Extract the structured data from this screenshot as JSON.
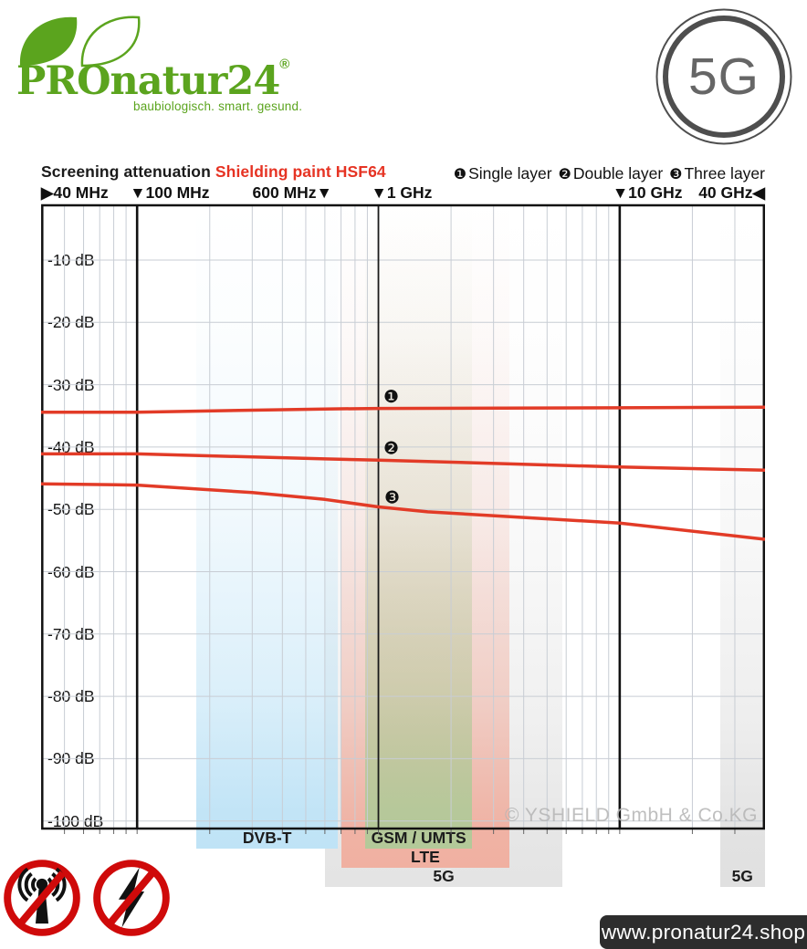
{
  "logo": {
    "name": "PROnatur24",
    "reg": "®",
    "tagline": "baubiologisch. smart. gesund.",
    "green": "#5ba41e"
  },
  "badge_5g": {
    "text": "5G"
  },
  "header": {
    "title_black": "Screening attenuation",
    "title_red": "Shielding paint HSF64"
  },
  "legend": {
    "items": [
      {
        "marker": "❶",
        "label": "Single layer"
      },
      {
        "marker": "❷",
        "label": "Double layer"
      },
      {
        "marker": "❸",
        "label": "Three layer"
      }
    ]
  },
  "watermark": "© YSHIELD GmbH & Co.KG",
  "footer": {
    "url": "www.pronatur24.shop"
  },
  "chart_data": {
    "type": "line",
    "title": "Screening attenuation Shielding paint HSF64",
    "x_scale": "log",
    "x_unit": "MHz",
    "x_range_mhz": [
      40,
      40000
    ],
    "ylabel": "dB",
    "ylim": [
      0,
      -100
    ],
    "series_color": "#e23b27",
    "grid_color": "#c8cdd4",
    "x_tick_labels": [
      {
        "text": "▶40 MHz",
        "anchor_mhz": 40,
        "anchor": "left-edge"
      },
      {
        "text": "▼100 MHz",
        "anchor_mhz": 100,
        "anchor": "marker-first"
      },
      {
        "text": "600 MHz▼",
        "anchor_mhz": 600,
        "anchor": "marker-last"
      },
      {
        "text": "▼1 GHz",
        "anchor_mhz": 1000,
        "anchor": "marker-first"
      },
      {
        "text": "▼10 GHz",
        "anchor_mhz": 10000,
        "anchor": "marker-first"
      },
      {
        "text": "40 GHz◀",
        "anchor_mhz": 40000,
        "anchor": "right-edge"
      }
    ],
    "y_ticks": [
      {
        "label": "-10 dB",
        "value": -10
      },
      {
        "label": "-20 dB",
        "value": -20
      },
      {
        "label": "-30 dB",
        "value": -30
      },
      {
        "label": "-40 dB",
        "value": -40
      },
      {
        "label": "-50 dB",
        "value": -50
      },
      {
        "label": "-60 dB",
        "value": -60
      },
      {
        "label": "-70 dB",
        "value": -70
      },
      {
        "label": "-80 dB",
        "value": -80
      },
      {
        "label": "-90 dB",
        "value": -90
      },
      {
        "label": "-100 dB",
        "value": -100
      }
    ],
    "grid_minor_mhz": [
      50,
      60,
      70,
      80,
      90,
      200,
      300,
      400,
      500,
      600,
      700,
      800,
      900,
      2000,
      3000,
      4000,
      5000,
      6000,
      7000,
      8000,
      9000,
      20000,
      30000
    ],
    "grid_major_mhz": [
      100,
      10000
    ],
    "grid_medium_mhz": [
      1000
    ],
    "series": [
      {
        "name": "Single layer",
        "marker": "❶",
        "marker_at": {
          "mhz": 1130,
          "db": -32.0
        },
        "points": [
          [
            40,
            -34.4
          ],
          [
            100,
            -34.4
          ],
          [
            600,
            -33.9
          ],
          [
            1000,
            -33.8
          ],
          [
            10000,
            -33.7
          ],
          [
            40000,
            -33.6
          ]
        ]
      },
      {
        "name": "Double layer",
        "marker": "❷",
        "marker_at": {
          "mhz": 1130,
          "db": -40.3
        },
        "points": [
          [
            40,
            -41.1
          ],
          [
            100,
            -41.1
          ],
          [
            600,
            -41.9
          ],
          [
            1000,
            -42.1
          ],
          [
            10000,
            -43.2
          ],
          [
            40000,
            -43.7
          ]
        ]
      },
      {
        "name": "Three layer",
        "marker": "❸",
        "marker_at": {
          "mhz": 1140,
          "db": -48.2
        },
        "points": [
          [
            40,
            -45.9
          ],
          [
            100,
            -46.1
          ],
          [
            300,
            -47.3
          ],
          [
            600,
            -48.4
          ],
          [
            1000,
            -49.6
          ],
          [
            1600,
            -50.4
          ],
          [
            10000,
            -52.2
          ],
          [
            40000,
            -54.8
          ]
        ]
      }
    ],
    "bands": [
      {
        "label": "5G",
        "color": "#e4e4e4",
        "from_mhz": 600,
        "to_mhz": 5800,
        "tier": 2
      },
      {
        "label": "DVB-T",
        "color": "#bfe3f6",
        "from_mhz": 176,
        "to_mhz": 680,
        "tier": 0
      },
      {
        "label": "LTE",
        "color": "#f0b0a1",
        "from_mhz": 700,
        "to_mhz": 3500,
        "tier": 1
      },
      {
        "label": "GSM / UMTS",
        "color": "#b3c999",
        "from_mhz": 880,
        "to_mhz": 2450,
        "tier": 0
      },
      {
        "label": "5G",
        "color": "#e0e0e0",
        "from_mhz": 26000,
        "to_mhz": 40000,
        "tier": 2
      }
    ]
  }
}
